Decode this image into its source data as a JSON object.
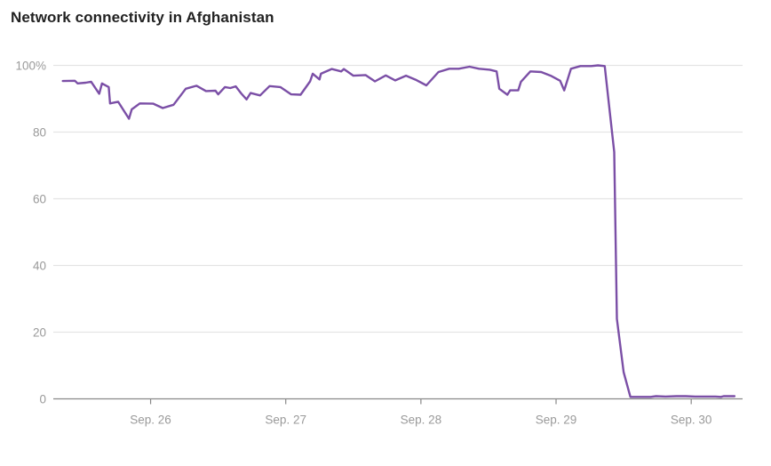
{
  "title": "Network connectivity in Afghanistan",
  "colors": {
    "line": "#7b4fa6",
    "grid": "#e4e4e4",
    "axis": "#888888",
    "tick_text": "#9a9a9a"
  },
  "chart_data": {
    "type": "line",
    "title": "Network connectivity in Afghanistan",
    "xlabel": "",
    "ylabel": "",
    "x_unit": "days",
    "xlim": [
      25.28,
      30.38
    ],
    "ylim": [
      0,
      100
    ],
    "grid": true,
    "y_ticks": [
      {
        "value": 0,
        "label": "0"
      },
      {
        "value": 20,
        "label": "20"
      },
      {
        "value": 40,
        "label": "40"
      },
      {
        "value": 60,
        "label": "60"
      },
      {
        "value": 80,
        "label": "80"
      },
      {
        "value": 100,
        "label": "100%"
      }
    ],
    "x_ticks": [
      {
        "value": 26,
        "label": "Sep. 26"
      },
      {
        "value": 27,
        "label": "Sep. 27"
      },
      {
        "value": 28,
        "label": "Sep. 28"
      },
      {
        "value": 29,
        "label": "Sep. 29"
      },
      {
        "value": 30,
        "label": "Sep. 30"
      }
    ],
    "series": [
      {
        "points": [
          [
            25.35,
            95.3
          ],
          [
            25.44,
            95.4
          ],
          [
            25.46,
            94.6
          ],
          [
            25.52,
            94.8
          ],
          [
            25.56,
            95.1
          ],
          [
            25.62,
            91.5
          ],
          [
            25.64,
            94.6
          ],
          [
            25.69,
            93.5
          ],
          [
            25.7,
            88.6
          ],
          [
            25.76,
            89.1
          ],
          [
            25.84,
            84.0
          ],
          [
            25.86,
            86.8
          ],
          [
            25.92,
            88.6
          ],
          [
            26.02,
            88.5
          ],
          [
            26.09,
            87.2
          ],
          [
            26.17,
            88.2
          ],
          [
            26.26,
            93.0
          ],
          [
            26.34,
            93.9
          ],
          [
            26.41,
            92.3
          ],
          [
            26.48,
            92.4
          ],
          [
            26.5,
            91.3
          ],
          [
            26.55,
            93.5
          ],
          [
            26.59,
            93.2
          ],
          [
            26.63,
            93.7
          ],
          [
            26.67,
            91.6
          ],
          [
            26.71,
            89.8
          ],
          [
            26.74,
            91.7
          ],
          [
            26.81,
            91.0
          ],
          [
            26.88,
            93.8
          ],
          [
            26.96,
            93.5
          ],
          [
            27.04,
            91.3
          ],
          [
            27.11,
            91.2
          ],
          [
            27.18,
            95.2
          ],
          [
            27.2,
            97.5
          ],
          [
            27.25,
            95.8
          ],
          [
            27.26,
            97.5
          ],
          [
            27.34,
            98.9
          ],
          [
            27.41,
            98.2
          ],
          [
            27.43,
            98.9
          ],
          [
            27.5,
            96.9
          ],
          [
            27.59,
            97.1
          ],
          [
            27.66,
            95.2
          ],
          [
            27.74,
            97.0
          ],
          [
            27.81,
            95.5
          ],
          [
            27.89,
            96.9
          ],
          [
            27.96,
            95.7
          ],
          [
            28.04,
            94.0
          ],
          [
            28.13,
            98.0
          ],
          [
            28.21,
            99.0
          ],
          [
            28.28,
            99.0
          ],
          [
            28.36,
            99.6
          ],
          [
            28.43,
            99.0
          ],
          [
            28.51,
            98.7
          ],
          [
            28.56,
            98.2
          ],
          [
            28.58,
            93.0
          ],
          [
            28.64,
            91.2
          ],
          [
            28.66,
            92.5
          ],
          [
            28.72,
            92.5
          ],
          [
            28.74,
            95.1
          ],
          [
            28.81,
            98.2
          ],
          [
            28.89,
            98.0
          ],
          [
            28.96,
            96.9
          ],
          [
            29.03,
            95.4
          ],
          [
            29.06,
            92.5
          ],
          [
            29.11,
            99.0
          ],
          [
            29.18,
            99.8
          ],
          [
            29.26,
            99.8
          ],
          [
            29.31,
            100.0
          ],
          [
            29.36,
            99.8
          ],
          [
            29.43,
            74.0
          ],
          [
            29.45,
            24.0
          ],
          [
            29.5,
            8.0
          ],
          [
            29.55,
            0.6
          ],
          [
            29.63,
            0.6
          ],
          [
            29.7,
            0.6
          ],
          [
            29.74,
            0.8
          ],
          [
            29.81,
            0.7
          ],
          [
            29.89,
            0.8
          ],
          [
            29.96,
            0.8
          ],
          [
            30.03,
            0.7
          ],
          [
            30.11,
            0.7
          ],
          [
            30.18,
            0.7
          ],
          [
            30.22,
            0.6
          ],
          [
            30.24,
            0.8
          ],
          [
            30.32,
            0.8
          ]
        ]
      }
    ]
  }
}
